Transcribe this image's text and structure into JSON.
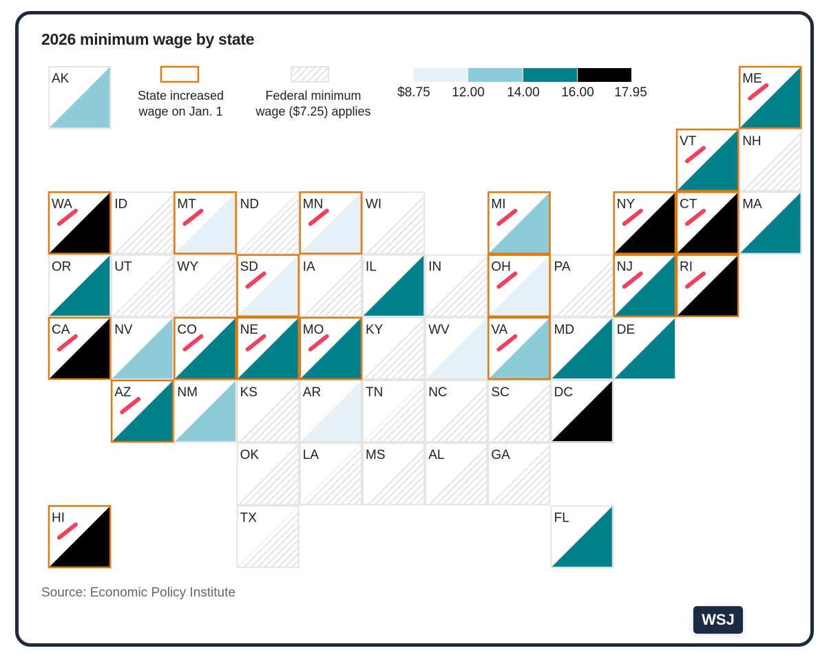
{
  "chart_data": {
    "type": "tile-map",
    "title": "2026 minimum wage by state",
    "source": "Source: Economic Policy Institute",
    "legend": {
      "increased_label": "State increased wage on Jan. 1",
      "increased_line1": "State increased",
      "increased_line2": "wage on Jan. 1",
      "federal_line1": "Federal minimum",
      "federal_line2": "wage ($7.25) applies",
      "scale_ticks": [
        "$8.75",
        "12.00",
        "14.00",
        "16.00",
        "17.95"
      ],
      "scale_colors": [
        "#e6f1f7",
        "#8ccbd7",
        "#00808b",
        "#000000"
      ],
      "federal_color": "hatched",
      "increased_border_color": "#e07a0f",
      "increase_mark_color": "#f2405f"
    },
    "states": [
      {
        "abbr": "AK",
        "bin": 1,
        "increased": false
      },
      {
        "abbr": "ME",
        "bin": 2,
        "increased": true
      },
      {
        "abbr": "VT",
        "bin": 2,
        "increased": true
      },
      {
        "abbr": "NH",
        "bin": "federal",
        "increased": false
      },
      {
        "abbr": "WA",
        "bin": 3,
        "increased": true
      },
      {
        "abbr": "ID",
        "bin": "federal",
        "increased": false
      },
      {
        "abbr": "MT",
        "bin": 0,
        "increased": true
      },
      {
        "abbr": "ND",
        "bin": "federal",
        "increased": false
      },
      {
        "abbr": "MN",
        "bin": 0,
        "increased": true
      },
      {
        "abbr": "WI",
        "bin": "federal",
        "increased": false
      },
      {
        "abbr": "MI",
        "bin": 1,
        "increased": true
      },
      {
        "abbr": "NY",
        "bin": 3,
        "increased": true
      },
      {
        "abbr": "CT",
        "bin": 3,
        "increased": true
      },
      {
        "abbr": "MA",
        "bin": 2,
        "increased": false
      },
      {
        "abbr": "OR",
        "bin": 2,
        "increased": false
      },
      {
        "abbr": "UT",
        "bin": "federal",
        "increased": false
      },
      {
        "abbr": "WY",
        "bin": "federal",
        "increased": false
      },
      {
        "abbr": "SD",
        "bin": 0,
        "increased": true
      },
      {
        "abbr": "IA",
        "bin": "federal",
        "increased": false
      },
      {
        "abbr": "IL",
        "bin": 2,
        "increased": false
      },
      {
        "abbr": "IN",
        "bin": "federal",
        "increased": false
      },
      {
        "abbr": "OH",
        "bin": 0,
        "increased": true
      },
      {
        "abbr": "PA",
        "bin": "federal",
        "increased": false
      },
      {
        "abbr": "NJ",
        "bin": 2,
        "increased": true
      },
      {
        "abbr": "RI",
        "bin": 3,
        "increased": true
      },
      {
        "abbr": "CA",
        "bin": 3,
        "increased": true
      },
      {
        "abbr": "NV",
        "bin": 1,
        "increased": false
      },
      {
        "abbr": "CO",
        "bin": 2,
        "increased": true
      },
      {
        "abbr": "NE",
        "bin": 2,
        "increased": true
      },
      {
        "abbr": "MO",
        "bin": 2,
        "increased": true
      },
      {
        "abbr": "KY",
        "bin": "federal",
        "increased": false
      },
      {
        "abbr": "WV",
        "bin": 0,
        "increased": false
      },
      {
        "abbr": "VA",
        "bin": 1,
        "increased": true
      },
      {
        "abbr": "MD",
        "bin": 2,
        "increased": false
      },
      {
        "abbr": "DE",
        "bin": 2,
        "increased": false
      },
      {
        "abbr": "AZ",
        "bin": 2,
        "increased": true
      },
      {
        "abbr": "NM",
        "bin": 1,
        "increased": false
      },
      {
        "abbr": "KS",
        "bin": "federal",
        "increased": false
      },
      {
        "abbr": "AR",
        "bin": 0,
        "increased": false
      },
      {
        "abbr": "TN",
        "bin": "federal",
        "increased": false
      },
      {
        "abbr": "NC",
        "bin": "federal",
        "increased": false
      },
      {
        "abbr": "SC",
        "bin": "federal",
        "increased": false
      },
      {
        "abbr": "DC",
        "bin": 3,
        "increased": false
      },
      {
        "abbr": "OK",
        "bin": "federal",
        "increased": false
      },
      {
        "abbr": "LA",
        "bin": "federal",
        "increased": false
      },
      {
        "abbr": "MS",
        "bin": "federal",
        "increased": false
      },
      {
        "abbr": "AL",
        "bin": "federal",
        "increased": false
      },
      {
        "abbr": "GA",
        "bin": "federal",
        "increased": false
      },
      {
        "abbr": "HI",
        "bin": 3,
        "increased": true
      },
      {
        "abbr": "TX",
        "bin": "federal",
        "increased": false
      },
      {
        "abbr": "FL",
        "bin": 2,
        "increased": false
      }
    ]
  },
  "brand": "WSJ"
}
